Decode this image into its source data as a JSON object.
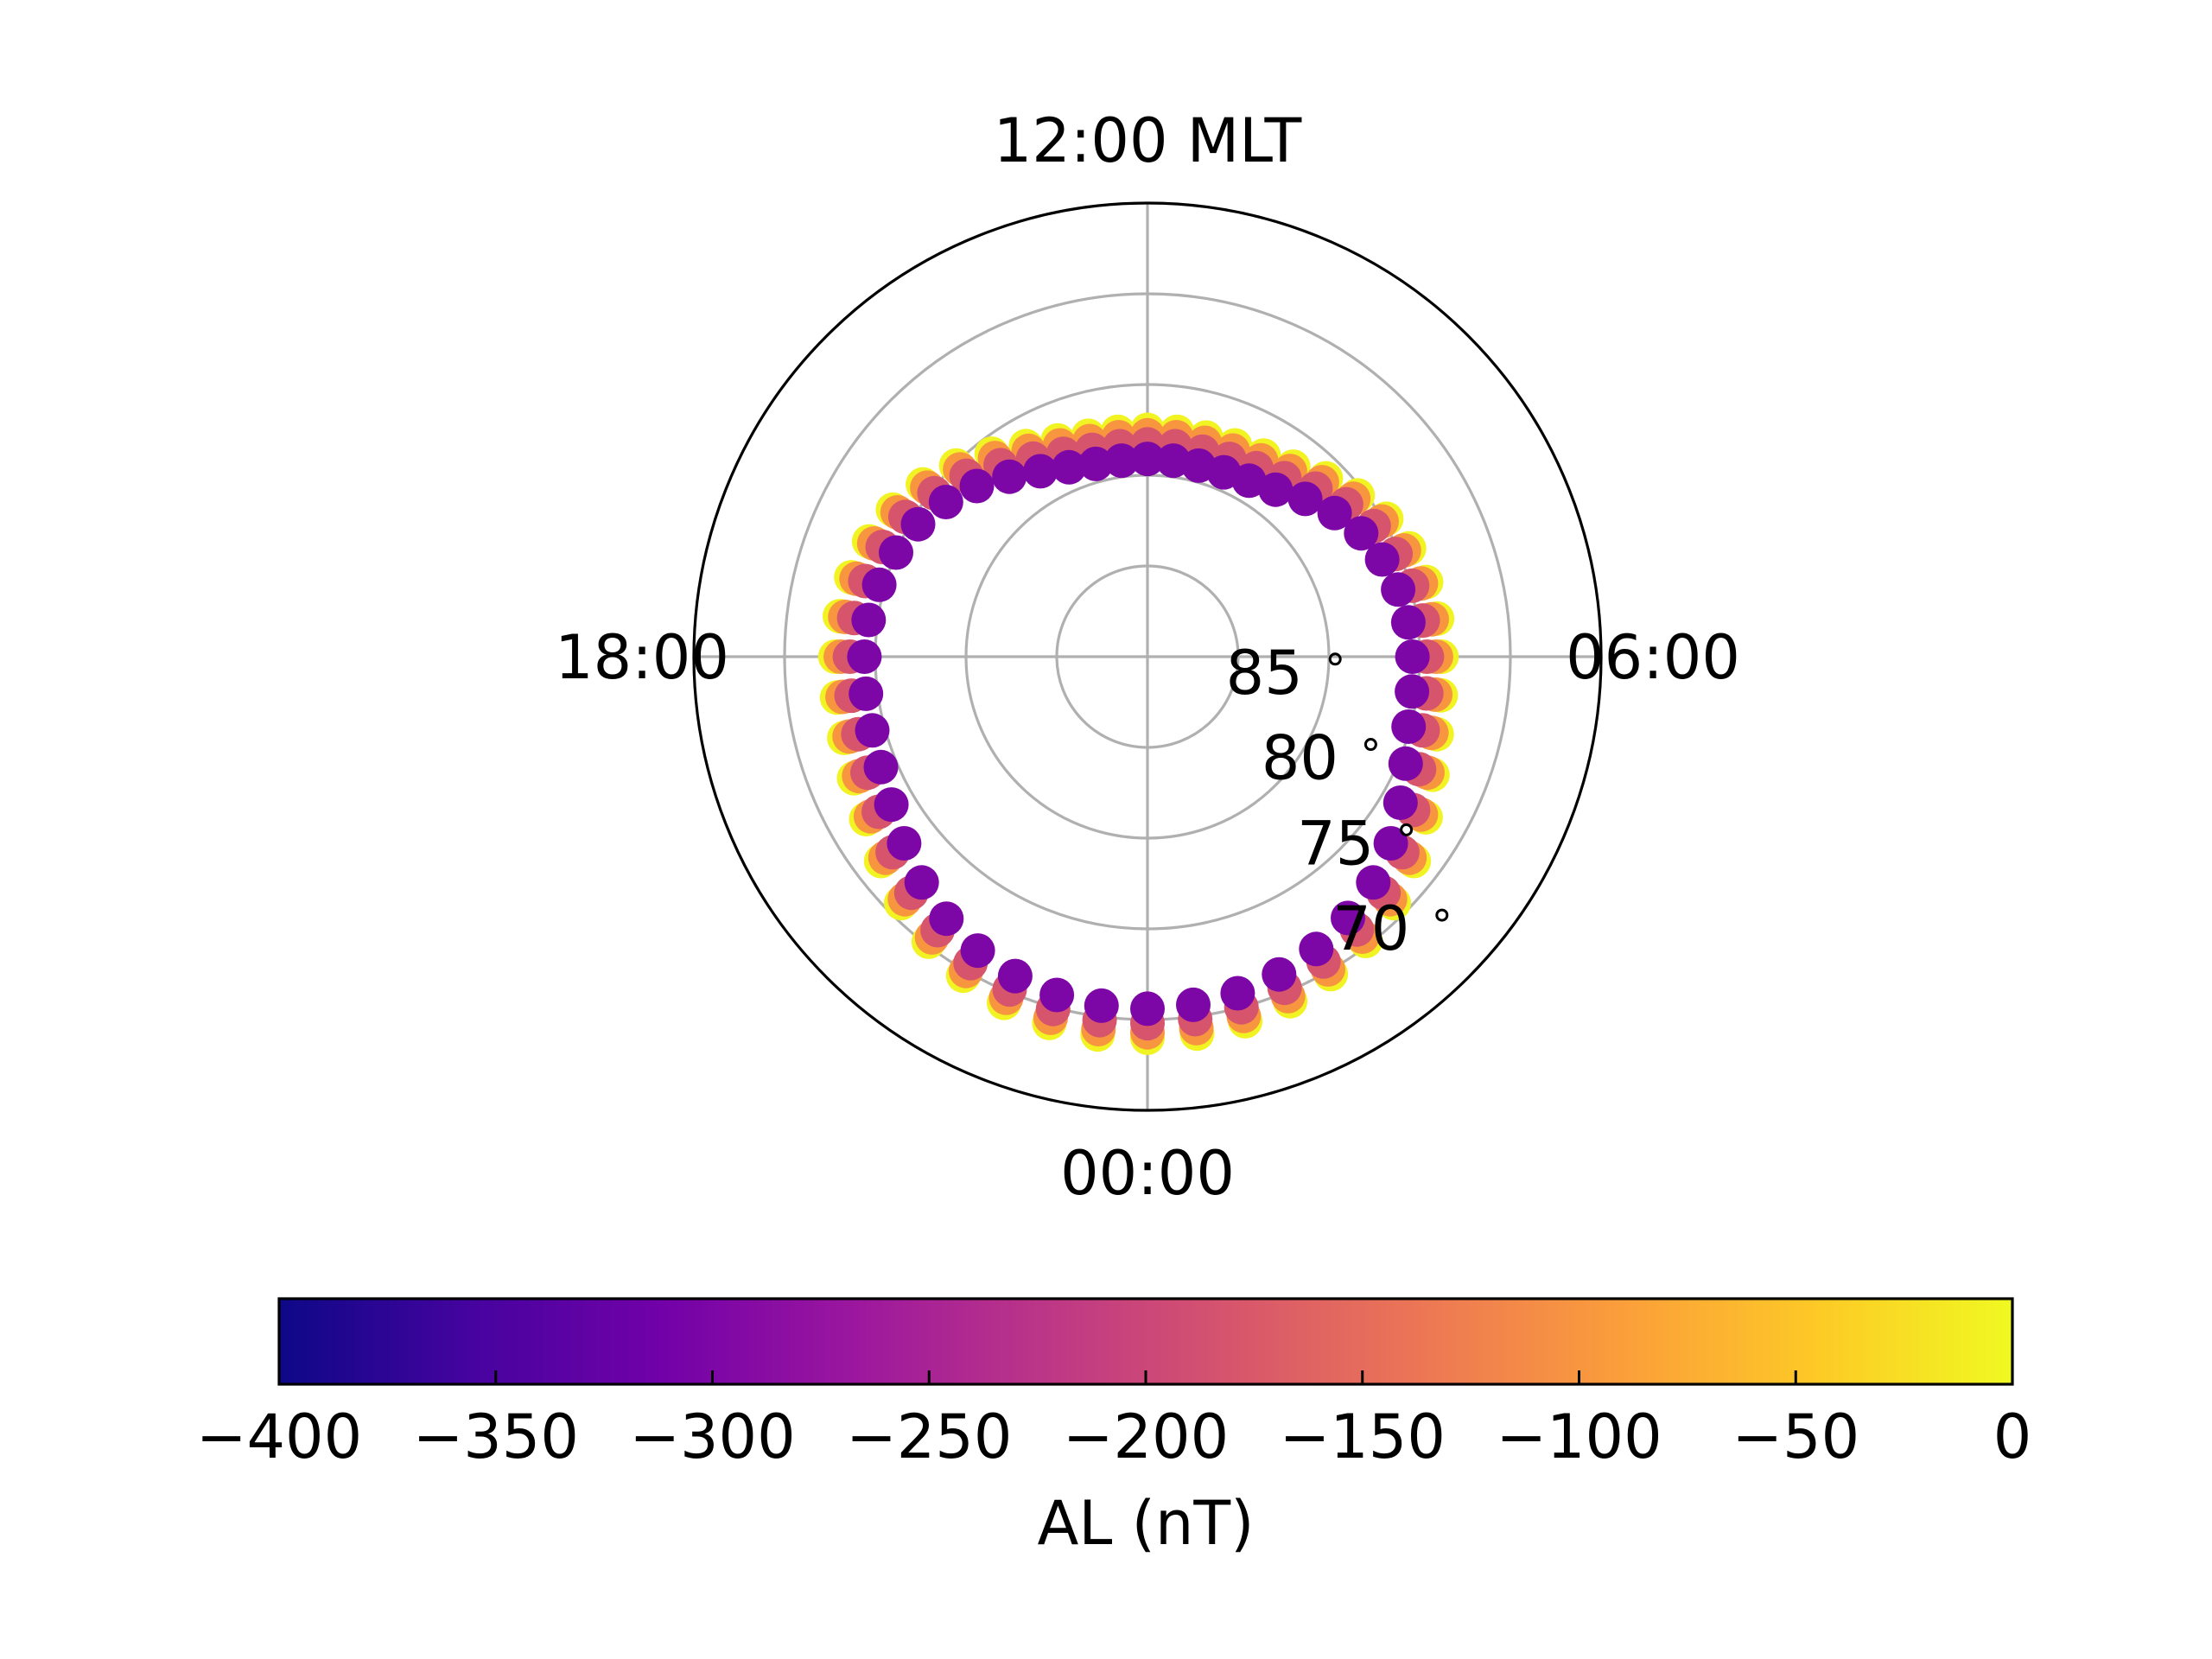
{
  "chart_data": {
    "type": "scatter",
    "projection": "polar",
    "mlt_labels": {
      "top": "12:00 MLT",
      "left": "18:00",
      "right": "06:00",
      "bottom": "00:00"
    },
    "lat_rings": [
      {
        "lat": 85,
        "label": "85$^\\circ$"
      },
      {
        "lat": 80,
        "label": "80$^\\circ$"
      },
      {
        "lat": 75,
        "label": "75$^\\circ$"
      },
      {
        "lat": 70,
        "label": "70$^\\circ$"
      }
    ],
    "lat_ring_labels": [
      "85",
      "80",
      "75",
      "70"
    ],
    "lat_range": [
      65,
      90
    ],
    "grid": true,
    "series": [
      {
        "al": -5,
        "mlt": [
          0.0,
          0.5,
          1.0,
          1.5,
          2.0,
          2.5,
          3.0,
          3.5,
          4.0,
          4.5,
          5.0,
          5.5,
          6.0,
          6.5,
          7.0,
          7.5,
          8.0,
          8.5,
          9.0,
          9.5,
          10.0,
          10.5,
          11.0,
          11.5,
          12.0,
          12.5,
          13.0,
          13.5,
          14.0,
          14.5,
          15.0,
          15.5,
          16.0,
          16.5,
          17.0,
          17.5,
          18.0,
          18.5,
          19.0,
          19.5,
          20.0,
          20.5,
          21.0,
          21.5,
          22.0,
          22.5,
          23.0,
          23.5
        ],
        "lat": [
          69.0,
          69.05,
          69.2,
          69.45,
          69.8,
          70.25,
          70.8,
          71.5,
          72.3,
          73.0,
          73.5,
          73.7,
          73.8,
          73.9,
          74.1,
          74.4,
          74.8,
          75.4,
          76.1,
          76.8,
          77.2,
          77.4,
          77.5,
          77.5,
          77.5,
          77.5,
          77.4,
          77.1,
          76.6,
          75.9,
          75.1,
          74.4,
          73.8,
          73.4,
          73.1,
          72.9,
          72.8,
          72.75,
          72.7,
          72.5,
          72.1,
          71.5,
          70.8,
          70.2,
          69.7,
          69.35,
          69.1,
          69.0
        ]
      },
      {
        "al": -100,
        "mlt": [
          0.0,
          0.5,
          1.0,
          1.5,
          2.0,
          2.5,
          3.0,
          3.5,
          4.0,
          4.5,
          5.0,
          5.5,
          6.0,
          6.5,
          7.0,
          7.5,
          8.0,
          8.5,
          9.0,
          9.5,
          10.0,
          10.5,
          11.0,
          11.5,
          12.0,
          12.5,
          13.0,
          13.5,
          14.0,
          14.5,
          15.0,
          15.5,
          16.0,
          16.5,
          17.0,
          17.5,
          18.0,
          18.5,
          19.0,
          19.5,
          20.0,
          20.5,
          21.0,
          21.5,
          22.0,
          22.5,
          23.0,
          23.5
        ],
        "lat": [
          69.3,
          69.35,
          69.5,
          69.75,
          70.1,
          70.55,
          71.1,
          71.8,
          72.6,
          73.3,
          73.8,
          74.0,
          74.1,
          74.2,
          74.4,
          74.7,
          75.1,
          75.7,
          76.4,
          77.1,
          77.5,
          77.7,
          77.8,
          77.8,
          77.8,
          77.8,
          77.7,
          77.4,
          76.9,
          76.2,
          75.4,
          74.7,
          74.1,
          73.7,
          73.4,
          73.2,
          73.1,
          73.05,
          73.0,
          72.8,
          72.4,
          71.8,
          71.1,
          70.5,
          70.0,
          69.65,
          69.4,
          69.3
        ]
      },
      {
        "al": -180,
        "mlt": [
          0.0,
          0.5,
          1.0,
          1.5,
          2.0,
          2.5,
          3.0,
          3.5,
          4.0,
          4.5,
          5.0,
          5.5,
          6.0,
          6.5,
          7.0,
          7.5,
          8.0,
          8.5,
          9.0,
          9.5,
          10.0,
          10.5,
          11.0,
          11.5,
          12.0,
          12.5,
          13.0,
          13.5,
          14.0,
          14.5,
          15.0,
          15.5,
          16.0,
          16.5,
          17.0,
          17.5,
          18.0,
          18.5,
          19.0,
          19.5,
          20.0,
          20.5,
          21.0,
          21.5,
          22.0,
          22.5,
          23.0,
          23.5
        ],
        "lat": [
          69.8,
          69.85,
          70.0,
          70.25,
          70.6,
          71.05,
          71.6,
          72.3,
          73.1,
          73.8,
          74.3,
          74.5,
          74.6,
          74.7,
          74.9,
          75.2,
          75.6,
          76.2,
          76.9,
          77.6,
          78.0,
          78.2,
          78.3,
          78.3,
          78.3,
          78.3,
          78.2,
          77.9,
          77.4,
          76.7,
          75.9,
          75.2,
          74.6,
          74.2,
          73.9,
          73.7,
          73.6,
          73.55,
          73.5,
          73.3,
          72.9,
          72.3,
          71.6,
          71.0,
          70.5,
          70.15,
          69.9,
          69.8
        ]
      },
      {
        "al": -300,
        "mlt": [
          0.0,
          0.5,
          1.0,
          1.5,
          2.0,
          2.5,
          3.0,
          3.5,
          4.0,
          4.5,
          5.0,
          5.5,
          6.0,
          6.5,
          7.0,
          7.5,
          8.0,
          8.5,
          9.0,
          9.5,
          10.0,
          10.5,
          11.0,
          11.5,
          12.0,
          12.5,
          13.0,
          13.5,
          14.0,
          14.5,
          15.0,
          15.5,
          16.0,
          16.5,
          17.0,
          17.5,
          18.0,
          18.5,
          19.0,
          19.5,
          20.0,
          20.5,
          21.0,
          21.5,
          22.0,
          22.5,
          23.0,
          23.5
        ],
        "lat": [
          70.6,
          70.65,
          70.8,
          71.05,
          71.4,
          71.85,
          72.4,
          73.1,
          73.9,
          74.6,
          75.1,
          75.3,
          75.4,
          75.5,
          75.7,
          76.0,
          76.4,
          77.0,
          77.7,
          78.4,
          78.8,
          79.0,
          79.1,
          79.1,
          79.1,
          79.1,
          79.0,
          78.7,
          78.2,
          77.5,
          76.7,
          76.0,
          75.4,
          75.0,
          74.7,
          74.5,
          74.4,
          74.35,
          74.3,
          74.1,
          73.7,
          73.1,
          72.4,
          71.8,
          71.3,
          70.95,
          70.7,
          70.6
        ]
      }
    ],
    "colorbar": {
      "label": "AL (nT)",
      "range": [
        -400,
        0
      ],
      "ticks": [
        -400,
        -350,
        -300,
        -250,
        -200,
        -150,
        -100,
        -50,
        0
      ],
      "tick_labels": [
        "−400",
        "−350",
        "−300",
        "−250",
        "−200",
        "−150",
        "−100",
        "−50",
        "0"
      ],
      "colormap": "plasma",
      "colormap_stops": [
        "#0d0887",
        "#46039f",
        "#7201a8",
        "#9c179e",
        "#bd3786",
        "#d8576b",
        "#ed7953",
        "#fb9f3a",
        "#fdca26",
        "#f0f921"
      ]
    }
  }
}
